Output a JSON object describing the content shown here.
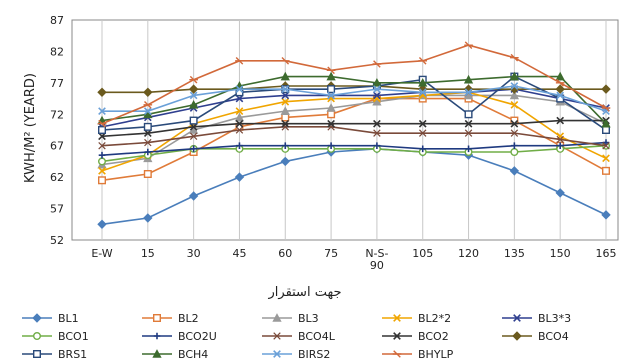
{
  "chart_data": {
    "type": "line",
    "categories": [
      "E-W",
      "15",
      "30",
      "45",
      "60",
      "75",
      "N-S-90",
      "105",
      "120",
      "135",
      "150",
      "165"
    ],
    "ylabel": "KWH/M² (YEARD)",
    "xlabel": "جهت استقرار",
    "ylim": [
      52,
      87
    ],
    "yticks": [
      52,
      57,
      62,
      67,
      72,
      77,
      82,
      87
    ],
    "grid": "vertical",
    "legend_position": "bottom",
    "series": [
      {
        "name": "BL1",
        "color": "#4a7ebb",
        "marker": "diamond",
        "values": [
          54.5,
          55.5,
          59,
          62,
          64.5,
          66,
          66.5,
          66,
          65.5,
          63,
          59.5,
          56
        ]
      },
      {
        "name": "BL2",
        "color": "#e07b39",
        "marker": "square",
        "values": [
          61.5,
          62.5,
          66,
          70,
          71.5,
          72,
          74.5,
          74.5,
          74.5,
          71,
          67,
          63
        ]
      },
      {
        "name": "BL3",
        "color": "#9a9a9a",
        "marker": "triangle",
        "values": [
          64,
          65,
          69.5,
          71.5,
          72.5,
          73,
          74,
          75,
          75,
          75,
          74,
          70.5
        ]
      },
      {
        "name": "BL2*2",
        "color": "#f0a500",
        "marker": "x",
        "values": [
          63,
          65.5,
          70.5,
          72.5,
          74,
          74.5,
          74.5,
          75,
          75.5,
          73.5,
          68.5,
          65
        ]
      },
      {
        "name": "BL3*3",
        "color": "#2f3f8f",
        "marker": "x",
        "values": [
          70,
          71.5,
          73,
          74.5,
          75,
          75,
          75,
          75.5,
          75.5,
          76,
          74.5,
          73
        ]
      },
      {
        "name": "BCO1",
        "color": "#70ad47",
        "marker": "circle",
        "values": [
          64.5,
          65.5,
          66.5,
          66.5,
          66.5,
          66.5,
          66.5,
          66,
          66,
          66,
          66.5,
          67
        ]
      },
      {
        "name": "BCO2U",
        "color": "#1f3a80",
        "marker": "plus",
        "values": [
          65.5,
          66,
          66.5,
          67,
          67,
          67,
          67,
          66.5,
          66.5,
          67,
          67,
          67.5
        ]
      },
      {
        "name": "BCO4L",
        "color": "#7a4a3a",
        "marker": "cross",
        "values": [
          67,
          67.5,
          68.5,
          69.5,
          70,
          70,
          69,
          69,
          69,
          69,
          68,
          67
        ]
      },
      {
        "name": "BCO2",
        "color": "#333333",
        "marker": "x",
        "values": [
          68.5,
          69,
          70,
          70.5,
          70.5,
          70.5,
          70.5,
          70.5,
          70.5,
          70.5,
          71,
          71
        ]
      },
      {
        "name": "BCO4",
        "color": "#6b5a1e",
        "marker": "diamond",
        "values": [
          75.5,
          75.5,
          76,
          76,
          76.5,
          76.5,
          76.5,
          76,
          76,
          76,
          76,
          76
        ]
      },
      {
        "name": "BRS1",
        "color": "#2a4a7a",
        "marker": "square",
        "values": [
          69.5,
          70,
          71,
          75.5,
          76,
          76,
          76.5,
          77.5,
          72,
          78,
          74.5,
          69.5
        ]
      },
      {
        "name": "BCH4",
        "color": "#3d6b2e",
        "marker": "triangle",
        "values": [
          71,
          72,
          73.5,
          76.5,
          78,
          78,
          77,
          77,
          77.5,
          78,
          78,
          70.5
        ]
      },
      {
        "name": "BIRS2",
        "color": "#6aa0d8",
        "marker": "x",
        "values": [
          72.5,
          72.5,
          75,
          76,
          76,
          75,
          76,
          75.5,
          75.5,
          76.5,
          75,
          72.5
        ]
      },
      {
        "name": "BHYLP",
        "color": "#d2693a",
        "marker": "dash",
        "values": [
          70.5,
          73.5,
          77.5,
          80.5,
          80.5,
          79,
          80,
          80.5,
          83,
          81,
          77,
          73
        ]
      }
    ]
  }
}
